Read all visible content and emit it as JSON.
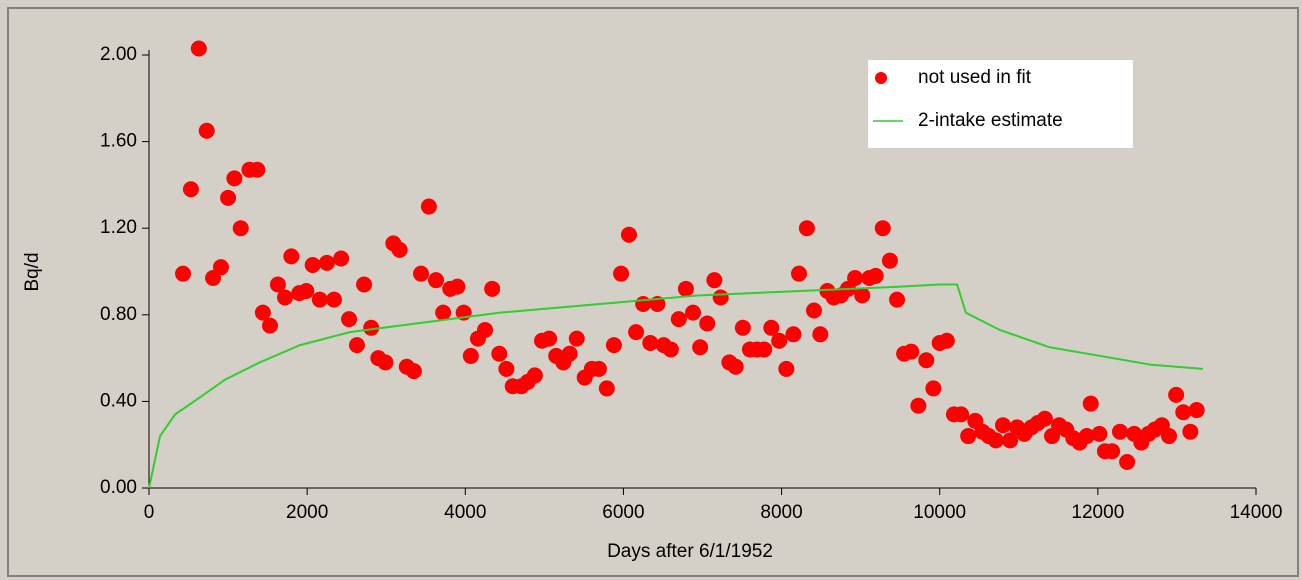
{
  "chart_data": {
    "type": "scatter",
    "xlabel": "Days after 6/1/1952",
    "ylabel": "Bq/d",
    "xlim": [
      0,
      14000
    ],
    "xticks": [
      0,
      2000,
      4000,
      6000,
      8000,
      10000,
      12000,
      14000
    ],
    "ylim": [
      0,
      2
    ],
    "yticks": [
      {
        "value": 0,
        "label": "0.00"
      },
      {
        "value": 0.4,
        "label": "0.40"
      },
      {
        "value": 0.8,
        "label": "0.80"
      },
      {
        "value": 1.2,
        "label": "1.20"
      },
      {
        "value": 1.6,
        "label": "1.60"
      },
      {
        "value": 2,
        "label": "2.00"
      }
    ],
    "legend": "upper right",
    "series": [
      {
        "name": "not used in fit",
        "color": "#ff0000",
        "mode": "markers",
        "x": [
          430,
          530,
          630,
          730,
          810,
          910,
          1000,
          1080,
          1160,
          1270,
          1370,
          1440,
          1530,
          1630,
          1720,
          1800,
          1900,
          1990,
          2070,
          2160,
          2250,
          2340,
          2430,
          2530,
          2630,
          2720,
          2810,
          2900,
          2990,
          3090,
          3170,
          3260,
          3350,
          3440,
          3540,
          3630,
          3720,
          3810,
          3900,
          3980,
          4070,
          4160,
          4250,
          4340,
          4430,
          4520,
          4600,
          4710,
          4790,
          4880,
          4970,
          5060,
          5150,
          5240,
          5320,
          5410,
          5510,
          5600,
          5690,
          5790,
          5880,
          5970,
          6070,
          6160,
          6250,
          6340,
          6430,
          6510,
          6600,
          6700,
          6790,
          6880,
          6970,
          7060,
          7150,
          7230,
          7340,
          7420,
          7510,
          7600,
          7690,
          7780,
          7870,
          7970,
          8060,
          8150,
          8220,
          8320,
          8410,
          8490,
          8580,
          8660,
          8750,
          8840,
          8930,
          9020,
          9110,
          9190,
          9280,
          9370,
          9460,
          9550,
          9640,
          9730,
          9830,
          9920,
          10000,
          10090,
          10180,
          10270,
          10360,
          10450,
          10540,
          10620,
          10710,
          10800,
          10890,
          10980,
          11070,
          11160,
          11240,
          11330,
          11420,
          11510,
          11600,
          11690,
          11770,
          11860,
          11910,
          12020,
          12090,
          12180,
          12280,
          12370,
          12460,
          12550,
          12640,
          12720,
          12810,
          12900,
          12990,
          13080,
          13170,
          13250
        ],
        "values": [
          0.99,
          1.38,
          2.03,
          1.65,
          0.97,
          1.02,
          1.34,
          1.43,
          1.2,
          1.47,
          1.47,
          0.81,
          0.75,
          0.94,
          0.88,
          1.07,
          0.9,
          0.91,
          1.03,
          0.87,
          1.04,
          0.87,
          1.06,
          0.78,
          0.66,
          0.94,
          0.74,
          0.6,
          0.58,
          1.13,
          1.1,
          0.56,
          0.54,
          0.99,
          1.3,
          0.96,
          0.81,
          0.92,
          0.93,
          0.81,
          0.61,
          0.69,
          0.73,
          0.92,
          0.62,
          0.55,
          0.47,
          0.47,
          0.49,
          0.52,
          0.68,
          0.69,
          0.61,
          0.58,
          0.62,
          0.69,
          0.51,
          0.55,
          0.55,
          0.46,
          0.66,
          0.99,
          1.17,
          0.72,
          0.85,
          0.67,
          0.85,
          0.66,
          0.64,
          0.78,
          0.92,
          0.81,
          0.65,
          0.76,
          0.96,
          0.88,
          0.58,
          0.56,
          0.74,
          0.64,
          0.64,
          0.64,
          0.74,
          0.68,
          0.55,
          0.71,
          0.99,
          1.2,
          0.82,
          0.71,
          0.91,
          0.88,
          0.89,
          0.92,
          0.97,
          0.89,
          0.97,
          0.98,
          1.2,
          1.05,
          0.87,
          0.62,
          0.63,
          0.38,
          0.59,
          0.46,
          0.67,
          0.68,
          0.34,
          0.34,
          0.24,
          0.31,
          0.26,
          0.24,
          0.22,
          0.29,
          0.22,
          0.28,
          0.25,
          0.28,
          0.3,
          0.32,
          0.24,
          0.29,
          0.27,
          0.23,
          0.21,
          0.24,
          0.39,
          0.25,
          0.17,
          0.17,
          0.26,
          0.12,
          0.25,
          0.21,
          0.25,
          0.27,
          0.29,
          0.24,
          0.43,
          0.35,
          0.26,
          0.36
        ]
      },
      {
        "name": "2-intake estimate",
        "color": "#33cc33",
        "mode": "lines",
        "x": [
          0,
          140,
          330,
          650,
          960,
          1400,
          1910,
          2540,
          3170,
          4440,
          5700,
          6970,
          8230,
          9500,
          10000,
          10220,
          10330,
          10760,
          11390,
          12030,
          12660,
          13330
        ],
        "values": [
          0,
          0.24,
          0.34,
          0.42,
          0.5,
          0.58,
          0.66,
          0.72,
          0.75,
          0.81,
          0.85,
          0.89,
          0.91,
          0.93,
          0.94,
          0.94,
          0.81,
          0.73,
          0.65,
          0.61,
          0.57,
          0.55
        ]
      }
    ]
  }
}
